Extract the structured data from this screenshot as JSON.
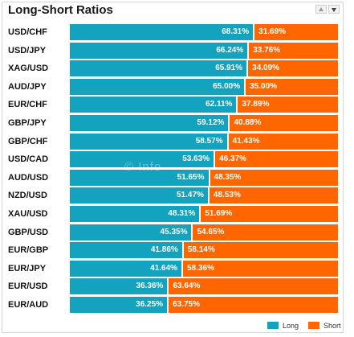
{
  "window": {
    "title": "Long-Short Ratios"
  },
  "watermark": "© Info",
  "colors": {
    "long": "#13a3bf",
    "short": "#ff6600"
  },
  "chart_data": {
    "type": "bar",
    "orientation": "horizontal",
    "stacked": true,
    "title": "Long-Short Ratios",
    "categories": [
      "USD/CHF",
      "USD/JPY",
      "XAG/USD",
      "AUD/JPY",
      "EUR/CHF",
      "GBP/JPY",
      "GBP/CHF",
      "USD/CAD",
      "AUD/USD",
      "NZD/USD",
      "XAU/USD",
      "GBP/USD",
      "EUR/GBP",
      "EUR/JPY",
      "EUR/USD",
      "EUR/AUD"
    ],
    "series": [
      {
        "name": "Long",
        "color": "#13a3bf",
        "values": [
          68.31,
          66.24,
          65.91,
          65.0,
          62.11,
          59.12,
          58.57,
          53.63,
          51.65,
          51.47,
          48.31,
          45.35,
          41.86,
          41.64,
          36.36,
          36.25
        ],
        "labels": [
          "68.31%",
          "66.24%",
          "65.91%",
          "65.00%",
          "62.11%",
          "59.12%",
          "58.57%",
          "53.63%",
          "51.65%",
          "51.47%",
          "48.31%",
          "45.35%",
          "41.86%",
          "41.64%",
          "36.36%",
          "36.25%"
        ]
      },
      {
        "name": "Short",
        "color": "#ff6600",
        "values": [
          31.69,
          33.76,
          34.09,
          35.0,
          37.89,
          40.88,
          41.43,
          46.37,
          48.35,
          48.53,
          51.69,
          54.65,
          58.14,
          58.36,
          63.64,
          63.75
        ],
        "labels": [
          "31.69%",
          "33.76%",
          "34.09%",
          "35.00%",
          "37.89%",
          "40.88%",
          "41.43%",
          "46.37%",
          "48.35%",
          "48.53%",
          "51.69%",
          "54.65%",
          "58.14%",
          "58.36%",
          "63.64%",
          "63.75%"
        ]
      }
    ],
    "xlim": [
      0,
      100
    ],
    "legend": "bottom-right",
    "grid": false
  }
}
